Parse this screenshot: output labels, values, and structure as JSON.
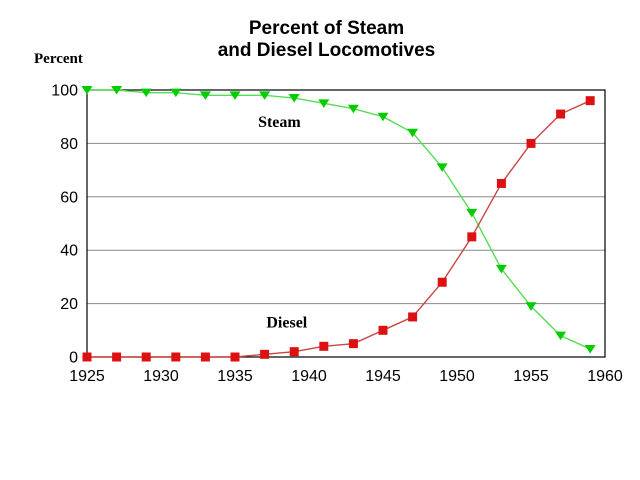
{
  "chart_data": {
    "type": "line",
    "title": "Percent of Steam and Diesel Locomotives",
    "title_lines": [
      "Percent of Steam",
      "and Diesel Locomotives"
    ],
    "ylabel": "Percent",
    "xlabel": "",
    "x": [
      1925,
      1927,
      1929,
      1931,
      1933,
      1935,
      1937,
      1939,
      1941,
      1943,
      1945,
      1947,
      1949,
      1951,
      1953,
      1955,
      1957,
      1959
    ],
    "series": [
      {
        "name": "Steam",
        "marker": "triangle-down",
        "marker_color": "#00CC00",
        "line_color": "#55DD55",
        "values": [
          100,
          100,
          99,
          99,
          98,
          98,
          98,
          97,
          95,
          93,
          90,
          84,
          71,
          54,
          33,
          19,
          8,
          3
        ]
      },
      {
        "name": "Diesel",
        "marker": "square",
        "marker_color": "#DD1111",
        "line_color": "#CC4444",
        "values": [
          0,
          0,
          0,
          0,
          0,
          0,
          1,
          2,
          4,
          5,
          10,
          15,
          28,
          45,
          65,
          80,
          91,
          96
        ]
      }
    ],
    "annotations": [
      {
        "label": "Steam",
        "x": 1938,
        "y": 88
      },
      {
        "label": "Diesel",
        "x": 1938.5,
        "y": 13
      }
    ],
    "x_ticks": [
      1925,
      1930,
      1935,
      1940,
      1945,
      1950,
      1955,
      1960
    ],
    "y_ticks": [
      0,
      20,
      40,
      60,
      80,
      100
    ],
    "xlim": [
      1925,
      1960
    ],
    "ylim": [
      0,
      100
    ],
    "grid": "horizontal",
    "legend_position": "none",
    "colors": {
      "grid": "#888888",
      "axis": "#000000",
      "background": "#FFFFFF",
      "text": "#000000"
    }
  }
}
